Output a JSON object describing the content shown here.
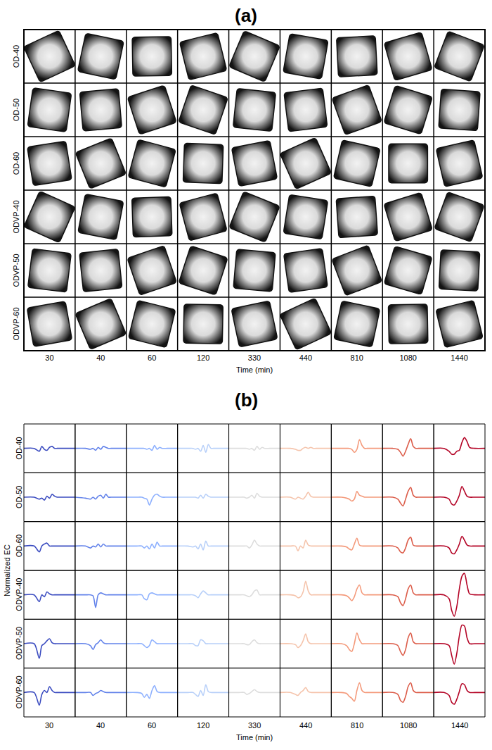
{
  "chart_data": [
    {
      "type": "image_grid",
      "title": "(a)",
      "rows": [
        "OD-40",
        "OD-50",
        "OD-60",
        "ODVP-40",
        "ODVP-50",
        "ODVP-60"
      ],
      "categories": [
        "30",
        "40",
        "60",
        "120",
        "330",
        "440",
        "810",
        "1080",
        "1440"
      ],
      "x_label": "Time (min)"
    },
    {
      "type": "line",
      "title": "(b)",
      "categories": [
        "30",
        "40",
        "60",
        "120",
        "330",
        "440",
        "810",
        "1080",
        "1440"
      ],
      "x_label": "Time (min)",
      "y_label": "Normalized EC",
      "tick_labels": false,
      "x": [
        0,
        0.2,
        0.3,
        0.35,
        0.4,
        0.45,
        0.5,
        0.55,
        0.6,
        0.65,
        0.7,
        0.8,
        1
      ],
      "xlim": [
        0,
        1
      ],
      "ylim": [
        -1.25,
        1.25
      ],
      "colors": [
        "#3b4cc0",
        "#6282ea",
        "#8db0fe",
        "#b8d0f9",
        "#dddddd",
        "#f5c4ac",
        "#f49a7b",
        "#dc5d4a",
        "#b40426"
      ],
      "series": [
        {
          "name": "OD-40",
          "values": [
            [
              0,
              0,
              -0.15,
              0.1,
              -0.05,
              -0.1,
              0.05,
              0.1,
              0,
              0,
              0,
              0,
              0
            ],
            [
              0,
              0,
              -0.05,
              0,
              -0.1,
              0.05,
              -0.05,
              0.1,
              0.05,
              0,
              0,
              0,
              0
            ],
            [
              0,
              0,
              0,
              0,
              -0.05,
              0,
              -0.1,
              0.15,
              -0.05,
              0.05,
              0,
              0,
              0
            ],
            [
              0,
              0,
              0,
              -0.05,
              0,
              -0.15,
              0.15,
              -0.2,
              0.2,
              0,
              0,
              0,
              0
            ],
            [
              0,
              0,
              0,
              0,
              -0.05,
              0,
              -0.1,
              0.1,
              -0.05,
              0.05,
              0,
              0,
              0
            ],
            [
              0,
              0,
              -0.05,
              -0.1,
              -0.1,
              0,
              0.05,
              0,
              0.05,
              0,
              0,
              0,
              0
            ],
            [
              0,
              0,
              0,
              0,
              -0.05,
              -0.2,
              -0.05,
              0.45,
              0.15,
              0,
              0,
              0,
              0
            ],
            [
              0,
              0,
              -0.05,
              -0.2,
              -0.4,
              -0.15,
              0.2,
              0.5,
              0.1,
              0,
              0,
              0,
              0
            ],
            [
              0,
              0,
              -0.15,
              -0.3,
              -0.3,
              -0.15,
              -0.1,
              0.3,
              0.55,
              0.35,
              0.05,
              0,
              0
            ]
          ]
        },
        {
          "name": "OD-50",
          "values": [
            [
              0,
              0,
              -0.1,
              -0.05,
              -0.15,
              0.05,
              -0.05,
              0.15,
              0.05,
              0,
              0,
              0,
              0
            ],
            [
              0,
              -0.05,
              -0.1,
              0,
              -0.1,
              0.05,
              0.1,
              -0.05,
              0.15,
              0,
              0,
              0,
              0
            ],
            [
              0,
              0,
              0,
              -0.05,
              -0.1,
              -0.4,
              -0.1,
              0.1,
              0.15,
              0.05,
              0,
              0,
              0
            ],
            [
              0,
              0,
              0,
              0,
              -0.05,
              0.1,
              -0.05,
              0.15,
              0.05,
              0,
              0,
              0,
              0
            ],
            [
              0,
              0,
              0,
              -0.05,
              0,
              0.1,
              -0.05,
              0.2,
              0.05,
              0,
              0,
              0,
              0
            ],
            [
              0,
              0,
              -0.1,
              0,
              -0.05,
              -0.1,
              0.05,
              0.25,
              0.05,
              0,
              0,
              0,
              0
            ],
            [
              0,
              0,
              -0.05,
              -0.1,
              -0.2,
              -0.1,
              0.3,
              0.1,
              0.05,
              0,
              0,
              0,
              0
            ],
            [
              0,
              0,
              -0.1,
              -0.3,
              -0.45,
              -0.1,
              0.3,
              0.5,
              0.1,
              0,
              0,
              0,
              0
            ],
            [
              0,
              0,
              -0.1,
              -0.35,
              -0.4,
              -0.2,
              0.1,
              0.55,
              0.3,
              0.05,
              0,
              0,
              0
            ]
          ]
        },
        {
          "name": "OD-60",
          "values": [
            [
              0,
              0,
              -0.3,
              0,
              0.1,
              0.15,
              0,
              0,
              0,
              0,
              0,
              0,
              0
            ],
            [
              0,
              0,
              -0.1,
              0,
              -0.05,
              0.1,
              -0.05,
              0.1,
              0,
              0,
              0,
              0,
              0
            ],
            [
              0,
              0,
              0,
              -0.1,
              0,
              -0.15,
              0.1,
              -0.1,
              0.2,
              0,
              0,
              0,
              0
            ],
            [
              0,
              0,
              -0.05,
              0,
              -0.15,
              0.1,
              -0.2,
              0.25,
              0,
              0,
              0,
              0,
              0
            ],
            [
              0,
              0,
              0,
              0,
              -0.1,
              0.05,
              0.3,
              0.1,
              0,
              0,
              0,
              0,
              0
            ],
            [
              0,
              0,
              0,
              -0.25,
              0,
              -0.1,
              0.3,
              0.05,
              0,
              0,
              0,
              0,
              0
            ],
            [
              0,
              0,
              -0.05,
              -0.15,
              -0.2,
              0.1,
              0.4,
              0.05,
              0,
              0,
              0,
              0,
              0
            ],
            [
              0,
              0,
              -0.1,
              -0.3,
              -0.35,
              -0.1,
              0.3,
              0.45,
              0.05,
              0,
              0,
              0,
              0
            ],
            [
              0,
              0,
              -0.1,
              -0.35,
              -0.4,
              -0.2,
              0.1,
              0.5,
              0.3,
              0.05,
              0,
              0,
              0
            ]
          ]
        },
        {
          "name": "ODVP-40",
          "values": [
            [
              0,
              0,
              -0.35,
              0,
              -0.1,
              0.15,
              0.05,
              0,
              0,
              0,
              0,
              0,
              0
            ],
            [
              0,
              0,
              0,
              -0.05,
              -0.65,
              0,
              0.1,
              0.05,
              0,
              0,
              0,
              0,
              0
            ],
            [
              0,
              0,
              0,
              -0.2,
              -0.25,
              0.05,
              0.1,
              0.05,
              0,
              0,
              0,
              0,
              0
            ],
            [
              0,
              0,
              0,
              -0.05,
              -0.15,
              0.05,
              0.2,
              0.1,
              0,
              0,
              0,
              0,
              0
            ],
            [
              0,
              0,
              0,
              -0.05,
              -0.1,
              0,
              0.2,
              0.25,
              0,
              0,
              0,
              0,
              0
            ],
            [
              0,
              0,
              -0.05,
              -0.15,
              -0.1,
              0.15,
              0.7,
              0.2,
              0,
              0,
              0,
              0,
              0
            ],
            [
              0,
              0,
              -0.05,
              -0.15,
              -0.3,
              -0.1,
              0.3,
              0.5,
              0.1,
              0,
              0,
              0,
              0
            ],
            [
              0,
              0,
              -0.1,
              -0.4,
              -0.55,
              -0.2,
              0.3,
              0.5,
              0.1,
              0,
              0,
              0,
              0
            ],
            [
              0,
              0,
              -0.2,
              -0.8,
              -1.1,
              -0.6,
              0.3,
              0.95,
              1.1,
              0.5,
              0.05,
              0,
              0
            ]
          ]
        },
        {
          "name": "ODVP-50",
          "values": [
            [
              0,
              0,
              -0.75,
              -0.1,
              0,
              0.15,
              0.25,
              0.05,
              0,
              0,
              0,
              0,
              0
            ],
            [
              0,
              0,
              -0.1,
              -0.3,
              -0.05,
              0.05,
              0.2,
              0.05,
              0,
              0,
              0,
              0,
              0
            ],
            [
              0,
              0,
              0,
              -0.1,
              -0.2,
              -0.1,
              0.2,
              0.1,
              0,
              0,
              0,
              0,
              0
            ],
            [
              0,
              0,
              0,
              -0.1,
              -0.1,
              0.2,
              0.15,
              0,
              0,
              0,
              0,
              0,
              0
            ],
            [
              0,
              0,
              0,
              -0.05,
              -0.05,
              0.1,
              0.2,
              0.05,
              0,
              0,
              0,
              0,
              0
            ],
            [
              0,
              0,
              -0.05,
              -0.2,
              -0.1,
              0.15,
              0.5,
              0.1,
              0,
              0,
              0,
              0,
              0
            ],
            [
              0,
              0,
              -0.1,
              -0.3,
              -0.4,
              0,
              0.55,
              0.2,
              0,
              0,
              0,
              0,
              0
            ],
            [
              0,
              0,
              -0.1,
              -0.4,
              -0.6,
              -0.3,
              0.3,
              0.55,
              0.1,
              0,
              0,
              0,
              0
            ],
            [
              0,
              0,
              -0.1,
              -0.6,
              -1.05,
              -0.5,
              0.4,
              0.95,
              0.9,
              0.3,
              0,
              0,
              0
            ]
          ]
        },
        {
          "name": "ODVP-60",
          "values": [
            [
              0,
              0,
              -0.65,
              -0.1,
              0.1,
              0,
              0.3,
              0.1,
              0,
              0,
              0,
              0,
              0
            ],
            [
              0,
              0,
              0,
              -0.15,
              -0.05,
              0,
              0.1,
              0.05,
              0,
              0,
              0,
              0,
              0
            ],
            [
              0,
              0,
              -0.05,
              -0.25,
              -0.1,
              -0.3,
              0.1,
              0.35,
              0.05,
              0,
              0,
              0,
              0
            ],
            [
              0,
              0,
              0,
              -0.1,
              -0.2,
              0.1,
              -0.15,
              0.4,
              0.05,
              0,
              0,
              0,
              0
            ],
            [
              0,
              0,
              0,
              -0.1,
              -0.05,
              0.05,
              0.15,
              0.05,
              0,
              0,
              0,
              0,
              0
            ],
            [
              0,
              0,
              -0.1,
              -0.15,
              0,
              0.1,
              0.25,
              0.05,
              0,
              0,
              0,
              0,
              0
            ],
            [
              0,
              0,
              -0.05,
              -0.2,
              -0.3,
              -0.45,
              0.1,
              0.5,
              0.1,
              0,
              0,
              0,
              0
            ],
            [
              0,
              0,
              -0.1,
              -0.4,
              -0.5,
              -0.2,
              0.3,
              0.5,
              0.1,
              0,
              0,
              0,
              0
            ],
            [
              0,
              0,
              -0.15,
              -0.5,
              -0.6,
              -0.35,
              0.05,
              0.45,
              0.4,
              0.1,
              0,
              0,
              0
            ]
          ]
        }
      ]
    }
  ]
}
